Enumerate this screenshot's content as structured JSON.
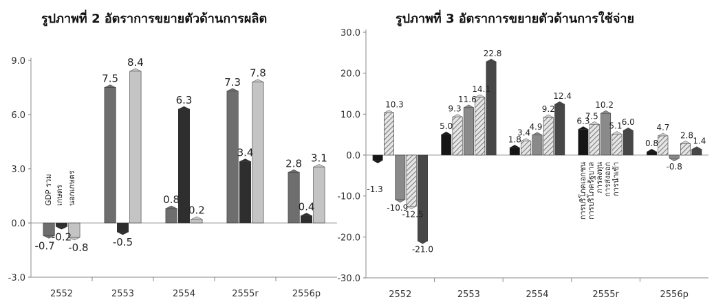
{
  "chart_data": [
    {
      "type": "bar",
      "title": "รูปภาพที่ 2 อัตราการขยายตัวด้านการผลิต",
      "categories": [
        "2552",
        "2553",
        "2554",
        "2555r",
        "2556p"
      ],
      "ylim": [
        -3.0,
        9.0
      ],
      "yticks": [
        "-3.0",
        "0.0",
        "3.0",
        "6.0",
        "9.0"
      ],
      "grid": false,
      "legend_placement": "inside-first-category",
      "series": [
        {
          "name": "GDP รวม",
          "color": "#6e6e6e",
          "values": [
            -0.7,
            7.5,
            0.8,
            7.3,
            2.8
          ]
        },
        {
          "name": "เกษตร",
          "color": "#2e2e2e",
          "values": [
            -0.2,
            -0.5,
            6.3,
            3.4,
            0.4
          ]
        },
        {
          "name": "นอกเกษตร",
          "color": "#c4c4c4",
          "values": [
            -0.8,
            8.4,
            0.2,
            7.8,
            3.1
          ]
        }
      ],
      "data_labels": [
        [
          "-0.7",
          "7.5",
          "0.8",
          "7.3",
          "2.8"
        ],
        [
          "-0.2",
          "-0.5",
          "6.3",
          "3.4",
          "0.4"
        ],
        [
          "-0.8",
          "8.4",
          "0.2",
          "7.8",
          "3.1"
        ]
      ]
    },
    {
      "type": "bar",
      "title": "รูปภาพที่ 3 อัตราการขยายตัวด้านการใช้จ่าย",
      "categories": [
        "2552",
        "2553",
        "2554",
        "2555r",
        "2556p"
      ],
      "ylim": [
        -30.0,
        30.0
      ],
      "yticks": [
        "-30.0",
        "-20.0",
        "-10.0",
        "0.0",
        "10.0",
        "20.0",
        "30.0"
      ],
      "grid": false,
      "legend_placement": "inside-2555r-category",
      "series": [
        {
          "name": "การบริโภคเอกชน",
          "color": "#151515",
          "pattern": "solid",
          "values": [
            -1.3,
            5.0,
            1.8,
            6.3,
            0.8
          ]
        },
        {
          "name": "การบริโภครัฐบาล",
          "color": "#b8b8b8",
          "pattern": "hatch",
          "values": [
            10.3,
            9.3,
            3.4,
            7.5,
            4.7
          ]
        },
        {
          "name": "การลงทุน",
          "color": "#8a8a8a",
          "pattern": "solid",
          "values": [
            -10.9,
            11.6,
            4.9,
            10.2,
            -0.8
          ]
        },
        {
          "name": "การส่งออก",
          "color": "#a8a8a8",
          "pattern": "hatch",
          "values": [
            -12.5,
            14.1,
            9.2,
            5.1,
            2.8
          ]
        },
        {
          "name": "การนำเข้า",
          "color": "#474747",
          "pattern": "solid",
          "values": [
            -21.0,
            22.8,
            12.4,
            6.0,
            1.4
          ]
        }
      ],
      "data_labels": [
        [
          "-1.3",
          "5.0",
          "1.8",
          "6.3",
          "0.8"
        ],
        [
          "10.3",
          "9.3",
          "3.4",
          "7.5",
          "4.7"
        ],
        [
          "-10.9",
          "11.6",
          "4.9",
          "10.2",
          "-0.8"
        ],
        [
          "-12.5",
          "14.1",
          "9.2",
          "5.1",
          "2.8"
        ],
        [
          "-21.0",
          "22.8",
          "12.4",
          "6.0",
          "1.4"
        ]
      ]
    }
  ]
}
